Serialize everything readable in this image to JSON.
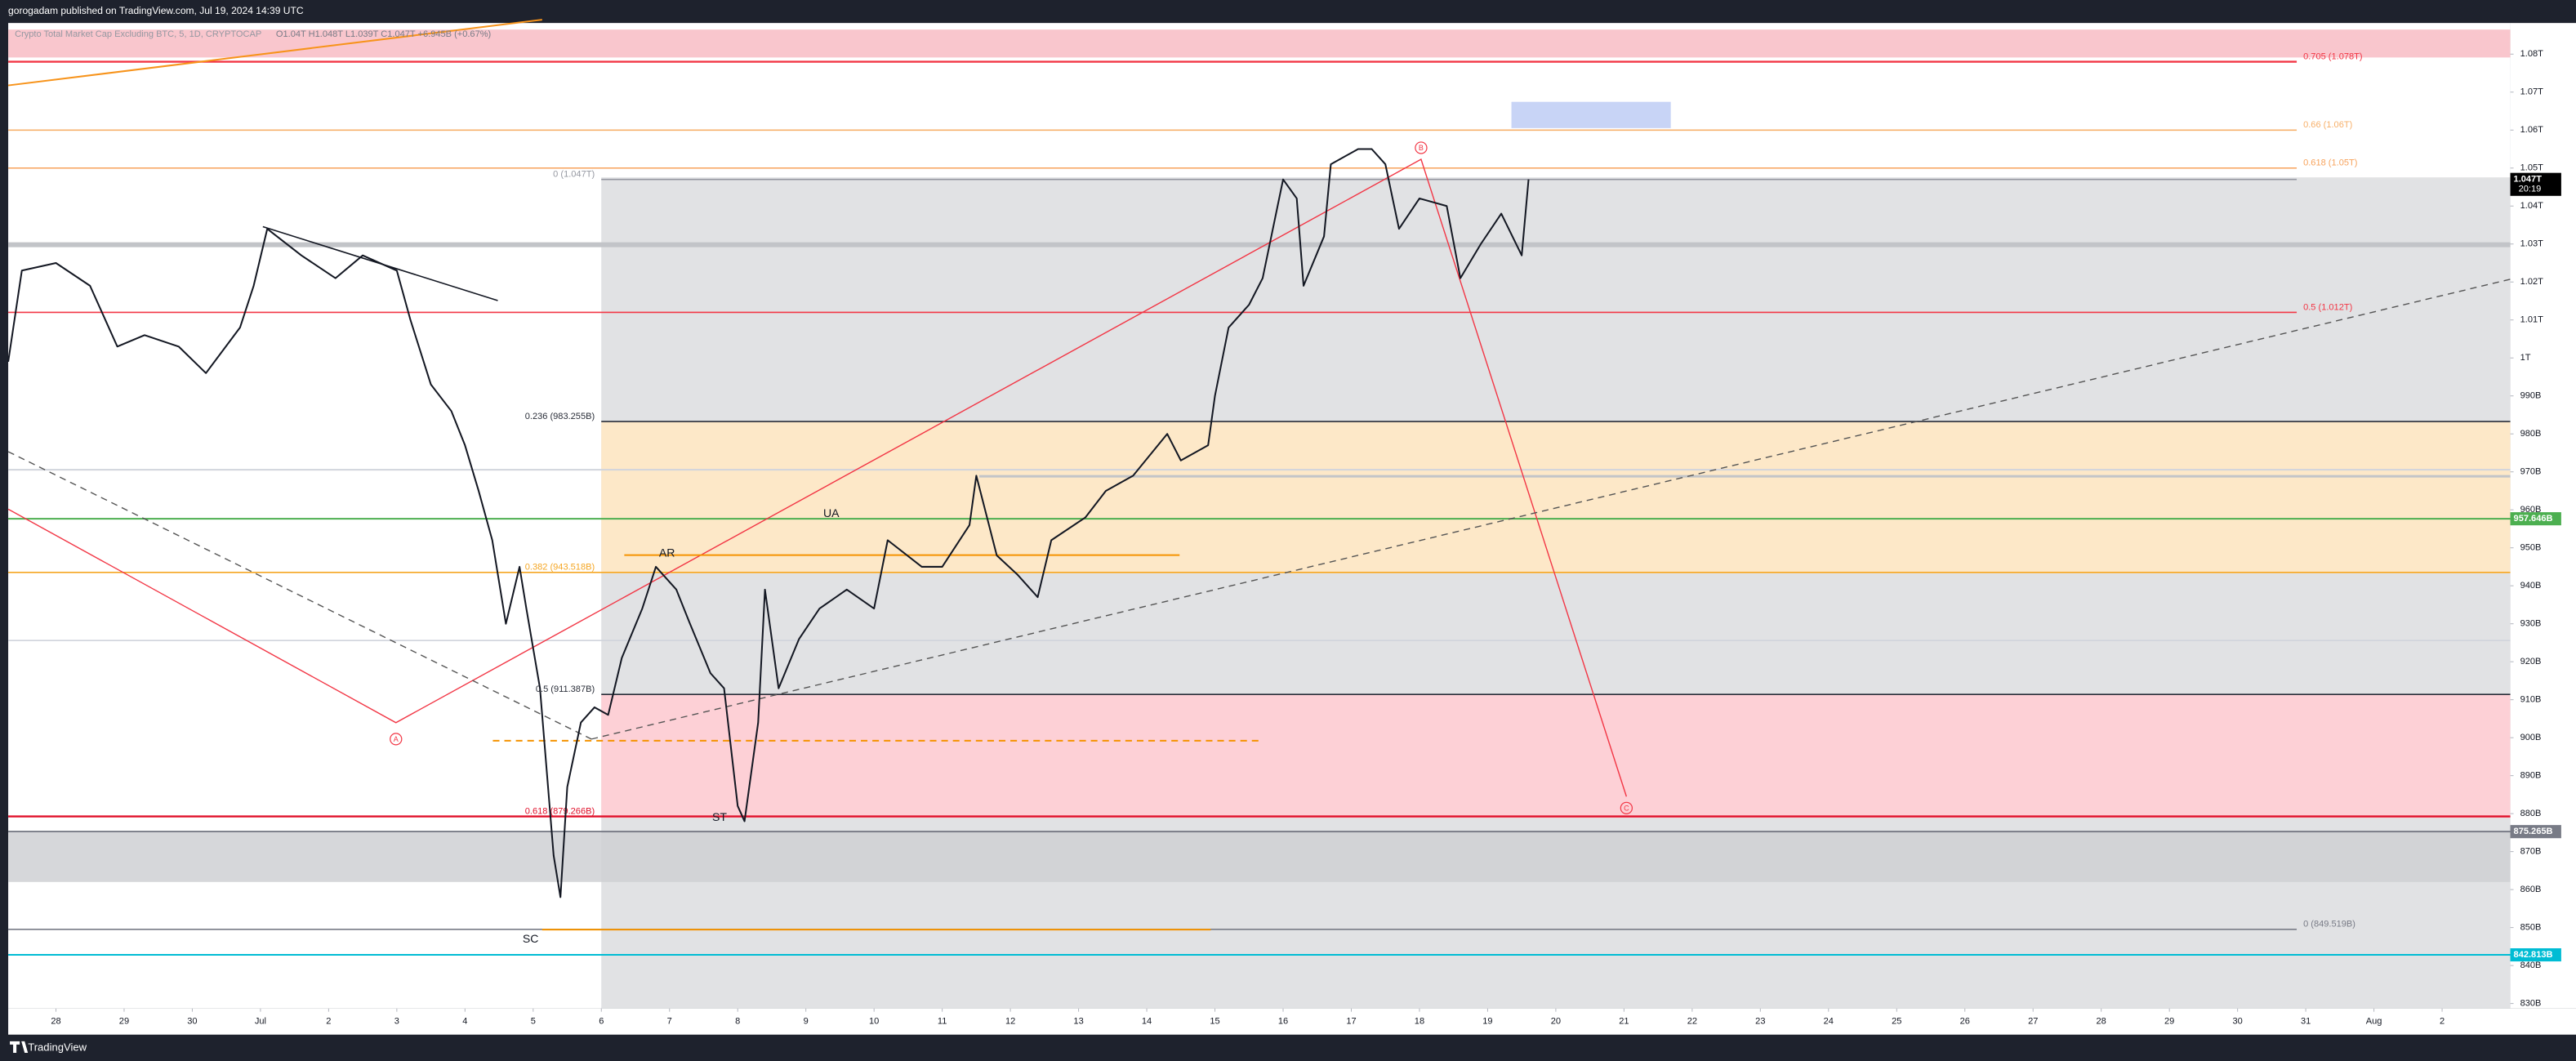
{
  "header": {
    "title": "gorogadam published on TradingView.com, Jul 19, 2024 14:39 UTC"
  },
  "footer": {
    "brand": "TradingView"
  },
  "chart_data": {
    "type": "line",
    "legend_values": "O1.04T H1.048T L1.039T C1.047T +6.945B (+0.67%)",
    "series": [
      {
        "name": "Crypto Total Market Cap Excluding BTC, 5, 1D, CRYPTOCAP",
        "color": "#131722",
        "x": [
          -0.7,
          -0.5,
          0.0,
          0.5,
          0.9,
          1.3,
          1.8,
          2.2,
          2.7,
          2.9,
          3.1,
          3.6,
          4.1,
          4.5,
          5.0,
          5.2,
          5.5,
          5.8,
          6.0,
          6.2,
          6.4,
          6.6,
          6.8,
          6.9,
          7.1,
          7.3,
          7.4,
          7.5,
          7.7,
          7.9,
          8.1,
          8.3,
          8.6,
          8.8,
          9.1,
          9.3,
          9.6,
          9.8,
          10.0,
          10.1,
          10.3,
          10.4,
          10.6,
          10.9,
          11.2,
          11.6,
          12.0,
          12.2,
          12.7,
          13.0,
          13.4,
          13.5,
          13.8,
          14.1,
          14.4,
          14.6,
          15.1,
          15.4,
          15.8,
          16.3,
          16.5,
          16.9,
          17.0,
          17.2,
          17.5,
          17.7,
          18.0,
          18.2,
          18.3,
          18.6,
          18.7,
          19.1,
          19.3,
          19.5,
          19.7,
          20.0,
          20.4,
          20.6,
          20.9,
          21.2,
          21.5,
          21.6
        ],
        "values": [
          999,
          1023,
          1025,
          1019,
          1003,
          1006,
          1003,
          996,
          1008,
          1019,
          1034,
          1027,
          1021,
          1027,
          1023,
          1010,
          993,
          986,
          977,
          965,
          952,
          930,
          945,
          934,
          913,
          869,
          858,
          887,
          904,
          908,
          906,
          921,
          934,
          945,
          939,
          930,
          917,
          913,
          882,
          878,
          904,
          939,
          913,
          926,
          934,
          939,
          934,
          952,
          945,
          945,
          956,
          969,
          948,
          943,
          937,
          952,
          958,
          965,
          969,
          980,
          973,
          977,
          990,
          1008,
          1014,
          1021,
          1047,
          1042,
          1019,
          1032,
          1051,
          1055,
          1055,
          1051,
          1034,
          1042,
          1040,
          1021,
          1030,
          1038,
          1027,
          1047
        ]
      }
    ],
    "xlim": [
      -0.7,
      36.0
    ],
    "xticks": [
      {
        "value": 0,
        "label": "28"
      },
      {
        "value": 1,
        "label": "29"
      },
      {
        "value": 2,
        "label": "30"
      },
      {
        "value": 3,
        "label": "Jul"
      },
      {
        "value": 4,
        "label": "2"
      },
      {
        "value": 5,
        "label": "3"
      },
      {
        "value": 6,
        "label": "4"
      },
      {
        "value": 7,
        "label": "5"
      },
      {
        "value": 8,
        "label": "6"
      },
      {
        "value": 9,
        "label": "7"
      },
      {
        "value": 10,
        "label": "8"
      },
      {
        "value": 11,
        "label": "9"
      },
      {
        "value": 12,
        "label": "10"
      },
      {
        "value": 13,
        "label": "11"
      },
      {
        "value": 14,
        "label": "12"
      },
      {
        "value": 15,
        "label": "13"
      },
      {
        "value": 16,
        "label": "14"
      },
      {
        "value": 17,
        "label": "15"
      },
      {
        "value": 18,
        "label": "16"
      },
      {
        "value": 19,
        "label": "17"
      },
      {
        "value": 20,
        "label": "18"
      },
      {
        "value": 21,
        "label": "19"
      },
      {
        "value": 22,
        "label": "20"
      },
      {
        "value": 23,
        "label": "21"
      },
      {
        "value": 24,
        "label": "22"
      },
      {
        "value": 25,
        "label": "23"
      },
      {
        "value": 26,
        "label": "24"
      },
      {
        "value": 27,
        "label": "25"
      },
      {
        "value": 28,
        "label": "26"
      },
      {
        "value": 29,
        "label": "27"
      },
      {
        "value": 30,
        "label": "28"
      },
      {
        "value": 31,
        "label": "29"
      },
      {
        "value": 32,
        "label": "30"
      },
      {
        "value": 33,
        "label": "31"
      },
      {
        "value": 34,
        "label": "Aug"
      },
      {
        "value": 35,
        "label": "2"
      }
    ],
    "ylim": [
      828.7,
      1088.2
    ],
    "yticks": [
      {
        "value": 830,
        "label": "830B"
      },
      {
        "value": 840,
        "label": "840B"
      },
      {
        "value": 850,
        "label": "850B"
      },
      {
        "value": 860,
        "label": "860B"
      },
      {
        "value": 870,
        "label": "870B"
      },
      {
        "value": 880,
        "label": "880B"
      },
      {
        "value": 890,
        "label": "890B"
      },
      {
        "value": 900,
        "label": "900B"
      },
      {
        "value": 910,
        "label": "910B"
      },
      {
        "value": 920,
        "label": "920B"
      },
      {
        "value": 930,
        "label": "930B"
      },
      {
        "value": 940,
        "label": "940B"
      },
      {
        "value": 950,
        "label": "950B"
      },
      {
        "value": 960,
        "label": "960B"
      },
      {
        "value": 970,
        "label": "970B"
      },
      {
        "value": 980,
        "label": "980B"
      },
      {
        "value": 990,
        "label": "990B"
      },
      {
        "value": 1000,
        "label": "1T"
      },
      {
        "value": 1010,
        "label": "1.01T"
      },
      {
        "value": 1020,
        "label": "1.02T"
      },
      {
        "value": 1030,
        "label": "1.03T"
      },
      {
        "value": 1040,
        "label": "1.04T"
      },
      {
        "value": 1050,
        "label": "1.05T"
      },
      {
        "value": 1060,
        "label": "1.06T"
      },
      {
        "value": 1070,
        "label": "1.07T"
      },
      {
        "value": 1080,
        "label": "1.08T"
      }
    ],
    "levels": [
      {
        "label": "0.705 (1.078T)",
        "value": 1078,
        "color": "#f23645"
      },
      {
        "label": "0.66 (1.06T)",
        "value": 1060,
        "color": "#f7b06a"
      },
      {
        "label": "0.618 (1.05T)",
        "value": 1050,
        "color": "#f7a35c"
      },
      {
        "label": "0 (1.047T)",
        "value": 1047,
        "color": "#9598a1"
      },
      {
        "label": "0.5 (1.012T)",
        "value": 1012,
        "color": "#f23645"
      },
      {
        "label": "0.236 (983.255B)",
        "value": 983.255,
        "color": "#2a2e39"
      },
      {
        "label": "0.382 (943.518B)",
        "value": 943.518,
        "color": "#f5a623"
      },
      {
        "label": "0.5 (911.387B)",
        "value": 911.387,
        "color": "#2a2e39"
      },
      {
        "label": "0.618 (879.266B)",
        "value": 879.266,
        "color": "#e0102a"
      },
      {
        "label": "0 (849.519B)",
        "value": 849.519,
        "color": "#787b86"
      }
    ],
    "price_lines": [
      {
        "label": "1.047T",
        "value": 1047,
        "color": "#000000",
        "countdown": "20:19"
      },
      {
        "label": "957.646B",
        "value": 957.646,
        "color": "#4caf50"
      },
      {
        "label": "875.265B",
        "value": 875.265,
        "color": "#787b86"
      },
      {
        "label": "842.813B",
        "value": 842.813,
        "color": "#00bcd4"
      }
    ],
    "annotations": [
      "UA",
      "AR",
      "ST",
      "SC"
    ],
    "waves": [
      "A",
      "B",
      "C"
    ]
  }
}
